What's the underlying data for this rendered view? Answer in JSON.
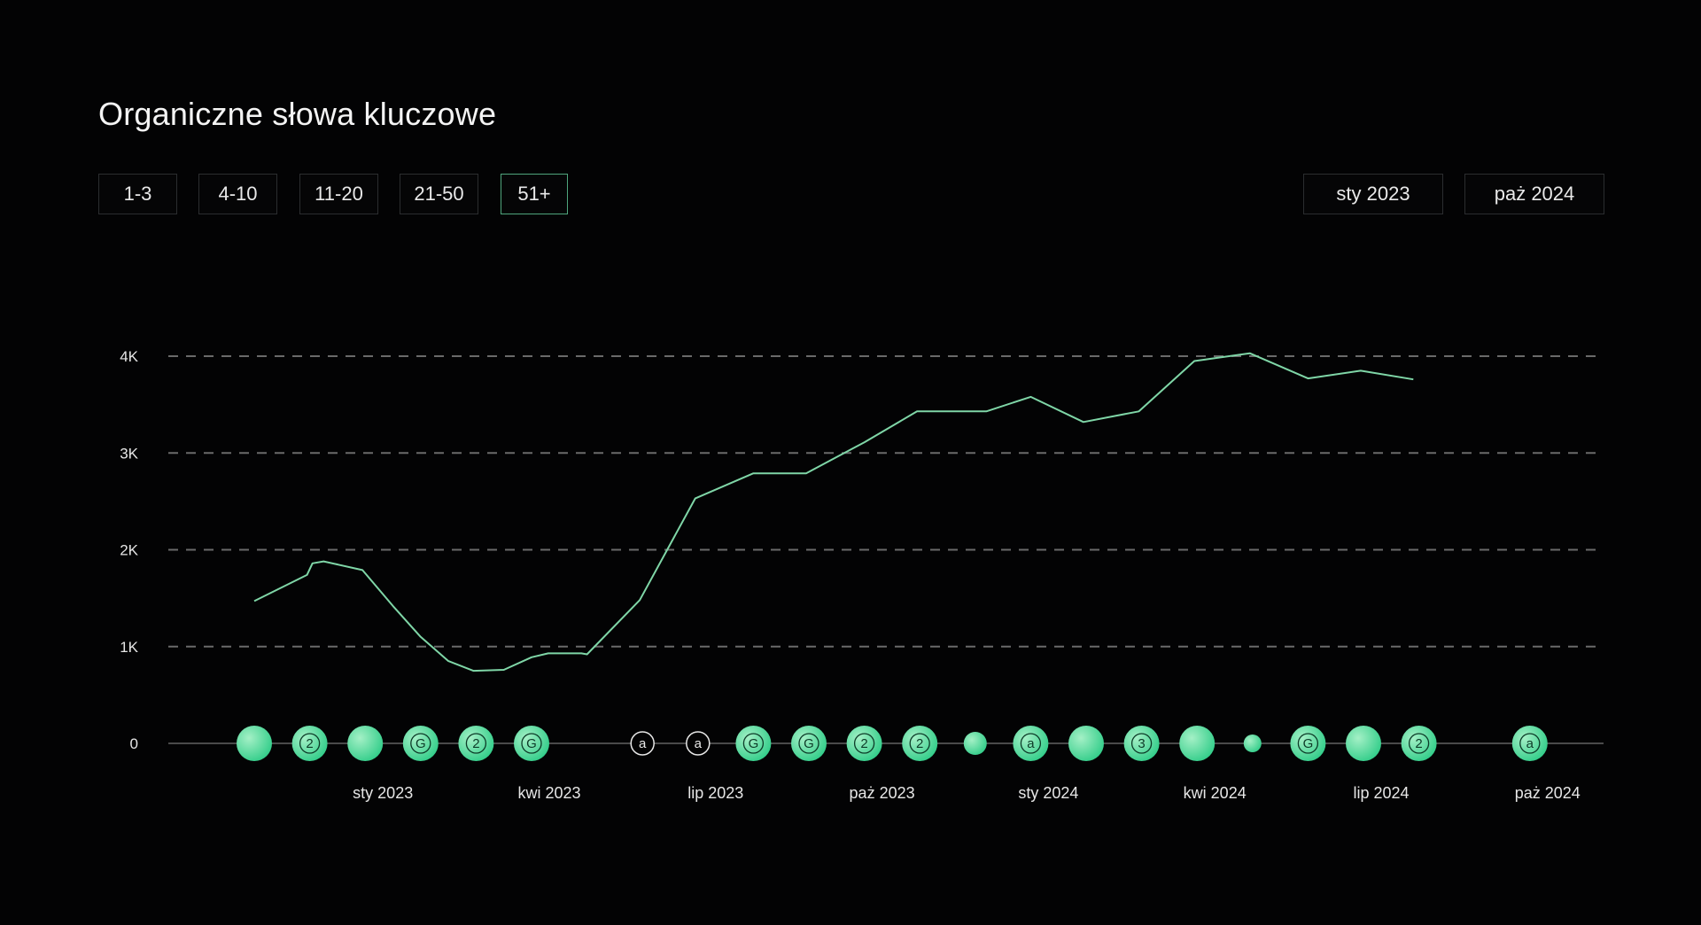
{
  "header": {
    "title": "Organiczne słowa kluczowe"
  },
  "filters": [
    {
      "label": "1-3",
      "active": false
    },
    {
      "label": "4-10",
      "active": false
    },
    {
      "label": "11-20",
      "active": false
    },
    {
      "label": "21-50",
      "active": false
    },
    {
      "label": "51+",
      "active": true
    }
  ],
  "date_range": {
    "from": "sty 2023",
    "to": "paż 2024"
  },
  "colors": {
    "line": "#7fd6a7",
    "accent": "#4fa57c",
    "marker_light": "#a4f0c6",
    "marker_dark": "#2ccb86",
    "grid": "#6a6a6a"
  },
  "chart_data": {
    "type": "line",
    "title": "",
    "xlabel": "",
    "ylabel": "",
    "ylim": [
      0,
      4000
    ],
    "y_ticks": [
      {
        "value": 0,
        "label": "0"
      },
      {
        "value": 1000,
        "label": "1K"
      },
      {
        "value": 2000,
        "label": "2K"
      },
      {
        "value": 3000,
        "label": "3K"
      },
      {
        "value": 4000,
        "label": "4K"
      }
    ],
    "grid": true,
    "x_ticks": [
      {
        "index": 2,
        "label": "sty 2023"
      },
      {
        "index": 5,
        "label": "kwi 2023"
      },
      {
        "index": 8,
        "label": "lip 2023"
      },
      {
        "index": 11,
        "label": "paż 2023"
      },
      {
        "index": 14,
        "label": "sty 2024"
      },
      {
        "index": 17,
        "label": "kwi 2024"
      },
      {
        "index": 20,
        "label": "lip 2024"
      },
      {
        "index": 23,
        "label": "paż 2024"
      }
    ],
    "x_count": 24,
    "series": [
      {
        "values": [
          [
            0.0,
            1470
          ],
          [
            0.95,
            1740
          ],
          [
            1.05,
            1860
          ],
          [
            1.25,
            1880
          ],
          [
            1.95,
            1790
          ],
          [
            2.5,
            1420
          ],
          [
            3.0,
            1100
          ],
          [
            3.5,
            850
          ],
          [
            3.95,
            750
          ],
          [
            4.5,
            760
          ],
          [
            5.0,
            890
          ],
          [
            5.3,
            930
          ],
          [
            5.9,
            930
          ],
          [
            6.0,
            920
          ],
          [
            6.95,
            1480
          ],
          [
            7.95,
            2530
          ],
          [
            9.0,
            2790
          ],
          [
            9.95,
            2790
          ],
          [
            11.0,
            3110
          ],
          [
            11.95,
            3430
          ],
          [
            13.2,
            3430
          ],
          [
            14.0,
            3580
          ],
          [
            14.95,
            3320
          ],
          [
            15.95,
            3430
          ],
          [
            16.95,
            3950
          ],
          [
            17.95,
            4030
          ],
          [
            19.0,
            3770
          ],
          [
            19.95,
            3850
          ],
          [
            20.9,
            3760
          ]
        ]
      }
    ],
    "markers": [
      {
        "index": 0,
        "label": "",
        "size": "large"
      },
      {
        "index": 1,
        "label": "2",
        "size": "large"
      },
      {
        "index": 2,
        "label": "",
        "size": "large"
      },
      {
        "index": 3,
        "label": "G",
        "size": "large"
      },
      {
        "index": 4,
        "label": "2",
        "size": "large"
      },
      {
        "index": 5,
        "label": "G",
        "size": "large"
      },
      {
        "index": 7,
        "label": "a",
        "size": "outline"
      },
      {
        "index": 8,
        "label": "a",
        "size": "outline"
      },
      {
        "index": 9,
        "label": "G",
        "size": "large"
      },
      {
        "index": 10,
        "label": "G",
        "size": "large"
      },
      {
        "index": 11,
        "label": "2",
        "size": "large"
      },
      {
        "index": 12,
        "label": "2",
        "size": "large"
      },
      {
        "index": 13,
        "label": "",
        "size": "medium"
      },
      {
        "index": 14,
        "label": "a",
        "size": "large"
      },
      {
        "index": 15,
        "label": "",
        "size": "large"
      },
      {
        "index": 16,
        "label": "3",
        "size": "large"
      },
      {
        "index": 17,
        "label": "",
        "size": "large"
      },
      {
        "index": 18,
        "label": "",
        "size": "small"
      },
      {
        "index": 19,
        "label": "G",
        "size": "large"
      },
      {
        "index": 20,
        "label": "",
        "size": "large"
      },
      {
        "index": 21,
        "label": "2",
        "size": "large"
      },
      {
        "index": 23,
        "label": "a",
        "size": "large"
      }
    ]
  }
}
